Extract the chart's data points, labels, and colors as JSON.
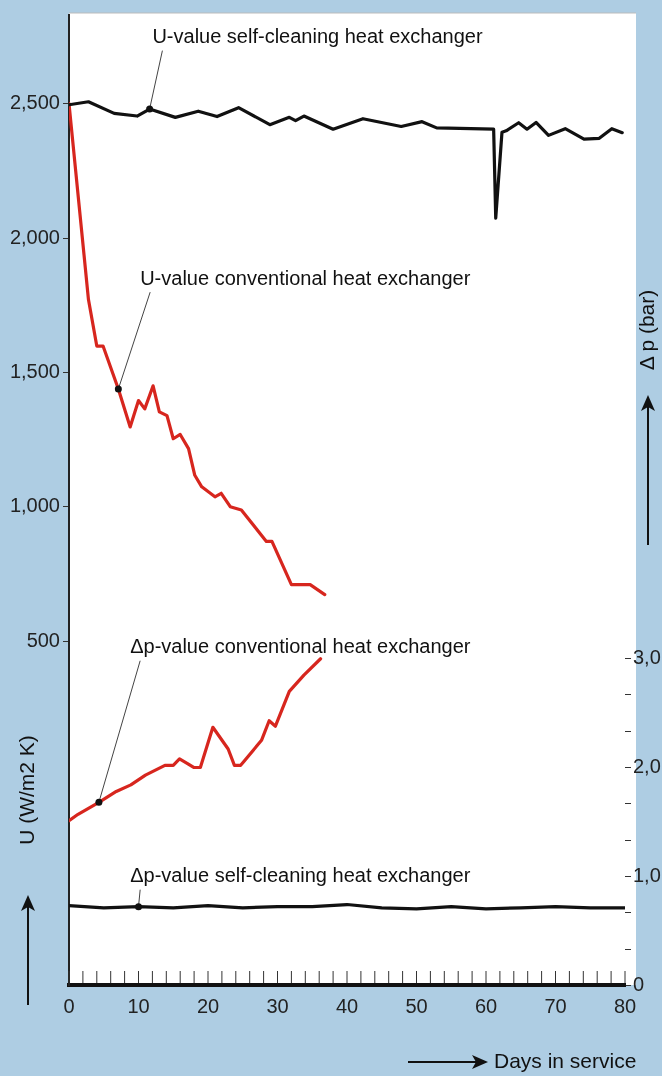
{
  "chart_data": {
    "type": "line",
    "xlabel": "Days in service",
    "ylabel": "U (W/m2 K)",
    "y2label": "Δ p (bar)",
    "xlim": [
      0,
      80
    ],
    "xticks": [
      0,
      {
        "value": 2,
        "label": null
      },
      {
        "value": 4,
        "label": null
      },
      {
        "value": 6,
        "label": null
      },
      {
        "value": 8,
        "label": null
      },
      10,
      {
        "value": 12,
        "label": null
      },
      {
        "value": 14,
        "label": null
      },
      {
        "value": 16,
        "label": null
      },
      {
        "value": 18,
        "label": null
      },
      20,
      {
        "value": 22,
        "label": null
      },
      {
        "value": 24,
        "label": null
      },
      {
        "value": 26,
        "label": null
      },
      {
        "value": 28,
        "label": null
      },
      30,
      {
        "value": 32,
        "label": null
      },
      {
        "value": 34,
        "label": null
      },
      {
        "value": 36,
        "label": null
      },
      {
        "value": 38,
        "label": null
      },
      40,
      {
        "value": 42,
        "label": null
      },
      {
        "value": 44,
        "label": null
      },
      {
        "value": 46,
        "label": null
      },
      {
        "value": 48,
        "label": null
      },
      50,
      {
        "value": 52,
        "label": null
      },
      {
        "value": 54,
        "label": null
      },
      {
        "value": 56,
        "label": null
      },
      {
        "value": 58,
        "label": null
      },
      60,
      {
        "value": 62,
        "label": null
      },
      {
        "value": 64,
        "label": null
      },
      {
        "value": 66,
        "label": null
      },
      {
        "value": 68,
        "label": null
      },
      70,
      {
        "value": 72,
        "label": null
      },
      {
        "value": 74,
        "label": null
      },
      {
        "value": 76,
        "label": null
      },
      {
        "value": 78,
        "label": null
      },
      80
    ],
    "ylim": [
      -780,
      2830
    ],
    "yticks": [
      500,
      {
        "value": 1000,
        "label": "1,000"
      },
      {
        "value": 1500,
        "label": "1,500"
      },
      {
        "value": 2000,
        "label": "2,000"
      },
      {
        "value": 2500,
        "label": "2,500"
      }
    ],
    "y2lim": [
      0,
      8.92
    ],
    "y2ticks": [
      0,
      {
        "value": 0.33,
        "label": null
      },
      {
        "value": 0.67,
        "label": null
      },
      {
        "value": 1,
        "label": "1,0"
      },
      {
        "value": 1.33,
        "label": null
      },
      {
        "value": 1.67,
        "label": null
      },
      {
        "value": 2,
        "label": "2,0"
      },
      {
        "value": 2.33,
        "label": null
      },
      {
        "value": 2.67,
        "label": null
      },
      {
        "value": 3,
        "label": "3,0"
      }
    ],
    "grid": false,
    "legend": false,
    "series": [
      {
        "name": "U-value self-cleaning heat exchanger",
        "color": "#111111",
        "x": [
          0,
          2.8,
          6.5,
          9.8,
          11.6,
          15.3,
          18.6,
          21.3,
          24.4,
          28.9,
          31.7,
          32.6,
          33.8,
          38,
          42.3,
          47.8,
          50.8,
          52.9,
          61.1,
          61.4,
          62.3,
          62.9,
          64.7,
          65.9,
          67.2,
          69,
          71.4,
          74.1,
          76.3,
          78.1,
          79.6
        ],
        "values": [
          2496,
          2507,
          2464,
          2454,
          2480,
          2449,
          2472,
          2452,
          2485,
          2422,
          2449,
          2437,
          2454,
          2405,
          2444,
          2415,
          2433,
          2410,
          2405,
          2074,
          2394,
          2399,
          2429,
          2405,
          2430,
          2382,
          2407,
          2368,
          2371,
          2407,
          2392
        ]
      },
      {
        "name": "U-value conventional heat exchanger",
        "color": "#d7261e",
        "x": [
          0,
          2.8,
          4.0,
          4.9,
          7.1,
          8.8,
          10.0,
          10.9,
          12.1,
          13.0,
          14.1,
          15.0,
          16.0,
          17.2,
          18.1,
          19.1,
          21.0,
          21.9,
          23.2,
          24.8,
          28.4,
          29.2,
          32.0,
          34.7,
          36.8
        ],
        "values": [
          2500,
          1771,
          1598,
          1598,
          1438,
          1297,
          1395,
          1364,
          1450,
          1353,
          1339,
          1253,
          1269,
          1216,
          1117,
          1074,
          1037,
          1050,
          1000,
          988,
          871,
          871,
          710,
          710,
          673
        ]
      },
      {
        "name": "Δp-value conventional heat exchanger",
        "color": "#d7261e",
        "axis": "y2",
        "x": [
          0,
          1.3,
          4.3,
          6.8,
          8.9,
          11.0,
          13.8,
          15.0,
          15.9,
          18.0,
          18.9,
          20.7,
          22.9,
          23.8,
          24.7,
          27.7,
          28.8,
          29.7,
          31.7,
          33.8,
          36.2
        ],
        "values": [
          1.51,
          1.57,
          1.68,
          1.78,
          1.84,
          1.93,
          2.02,
          2.02,
          2.08,
          2.0,
          2.0,
          2.37,
          2.17,
          2.02,
          2.02,
          2.25,
          2.43,
          2.38,
          2.7,
          2.85,
          3.0
        ]
      },
      {
        "name": "Δp-value self-cleaning heat exchanger",
        "color": "#111111",
        "axis": "y2",
        "x": [
          0,
          5,
          10,
          15,
          20,
          25,
          30,
          35,
          40,
          45,
          50,
          55,
          60,
          65,
          70,
          75,
          80
        ],
        "values": [
          0.73,
          0.71,
          0.72,
          0.71,
          0.73,
          0.71,
          0.72,
          0.72,
          0.74,
          0.71,
          0.7,
          0.72,
          0.7,
          0.71,
          0.72,
          0.71,
          0.71
        ]
      }
    ]
  }
}
